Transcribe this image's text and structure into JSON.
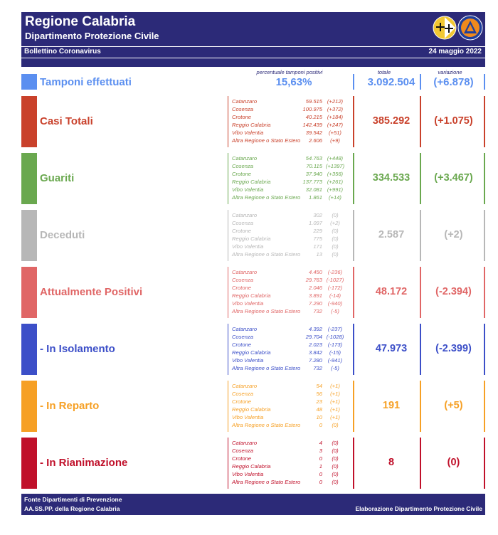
{
  "header": {
    "title": "Regione Calabria",
    "subtitle": "Dipartimento Protezione Civile",
    "bulletin": "Bollettino Coronavirus",
    "date": "24 maggio 2022",
    "logo_text": "PROTEZIONE CIVILE"
  },
  "columns": {
    "percent_label": "percentuale tamponi positivi",
    "total_label": "totale",
    "change_label": "variazione"
  },
  "tamponi": {
    "label": "Tamponi effettuati",
    "percent": "15,63%",
    "total": "3.092.504",
    "change": "(+6.878)",
    "color": "#5b8ff0"
  },
  "provinces": [
    "Catanzaro",
    "Cosenza",
    "Crotone",
    "Reggio Calabria",
    "Vibo Valentia",
    "Altra Regione o Stato Estero"
  ],
  "sections": [
    {
      "label": "Casi Totali",
      "total": "385.292",
      "change": "(+1.075)",
      "color": "#c9412b",
      "values": [
        "59.515",
        "100.975",
        "40.215",
        "142.439",
        "39.542",
        "2.606"
      ],
      "deltas": [
        "(+212)",
        "(+372)",
        "(+184)",
        "(+247)",
        "(+51)",
        "(+9)"
      ]
    },
    {
      "label": "Guariti",
      "total": "334.533",
      "change": "(+3.467)",
      "color": "#6aa84f",
      "values": [
        "54.763",
        "70.115",
        "37.940",
        "137.773",
        "32.081",
        "1.861"
      ],
      "deltas": [
        "(+448)",
        "(+1397)",
        "(+356)",
        "(+261)",
        "(+991)",
        "(+14)"
      ]
    },
    {
      "label": "Deceduti",
      "total": "2.587",
      "change": "(+2)",
      "color": "#b7b7b7",
      "values": [
        "302",
        "1.097",
        "229",
        "775",
        "171",
        "13"
      ],
      "deltas": [
        "(0)",
        "(+2)",
        "(0)",
        "(0)",
        "(0)",
        "(0)"
      ]
    },
    {
      "label": "Attualmente Positivi",
      "total": "48.172",
      "change": "(-2.394)",
      "color": "#e06666",
      "values": [
        "4.450",
        "29.763",
        "2.046",
        "3.891",
        "7.290",
        "732"
      ],
      "deltas": [
        "(-236)",
        "(-1027)",
        "(-172)",
        "(-14)",
        "(-940)",
        "(-5)"
      ]
    },
    {
      "label": "- In Isolamento",
      "total": "47.973",
      "change": "(-2.399)",
      "color": "#3c4fc8",
      "values": [
        "4.392",
        "29.704",
        "2.023",
        "3.842",
        "7.280",
        "732"
      ],
      "deltas": [
        "(-237)",
        "(-1028)",
        "(-173)",
        "(-15)",
        "(-941)",
        "(-5)"
      ]
    },
    {
      "label": "- In Reparto",
      "total": "191",
      "change": "(+5)",
      "color": "#f6a025",
      "values": [
        "54",
        "56",
        "23",
        "48",
        "10",
        "0"
      ],
      "deltas": [
        "(+1)",
        "(+1)",
        "(+1)",
        "(+1)",
        "(+1)",
        "(0)"
      ]
    },
    {
      "label": "- In Rianimazione",
      "total": "8",
      "change": "(0)",
      "color": "#c0102a",
      "values": [
        "4",
        "3",
        "0",
        "1",
        "0",
        "0"
      ],
      "deltas": [
        "(0)",
        "(0)",
        "(0)",
        "(0)",
        "(0)",
        "(0)"
      ]
    }
  ],
  "footer": {
    "line1": "Fonte Dipartimenti di Prevenzione",
    "line2": "AA.SS.PP.  della Regione Calabria",
    "credit": "Elaborazione Dipartimento Protezione Civile"
  }
}
